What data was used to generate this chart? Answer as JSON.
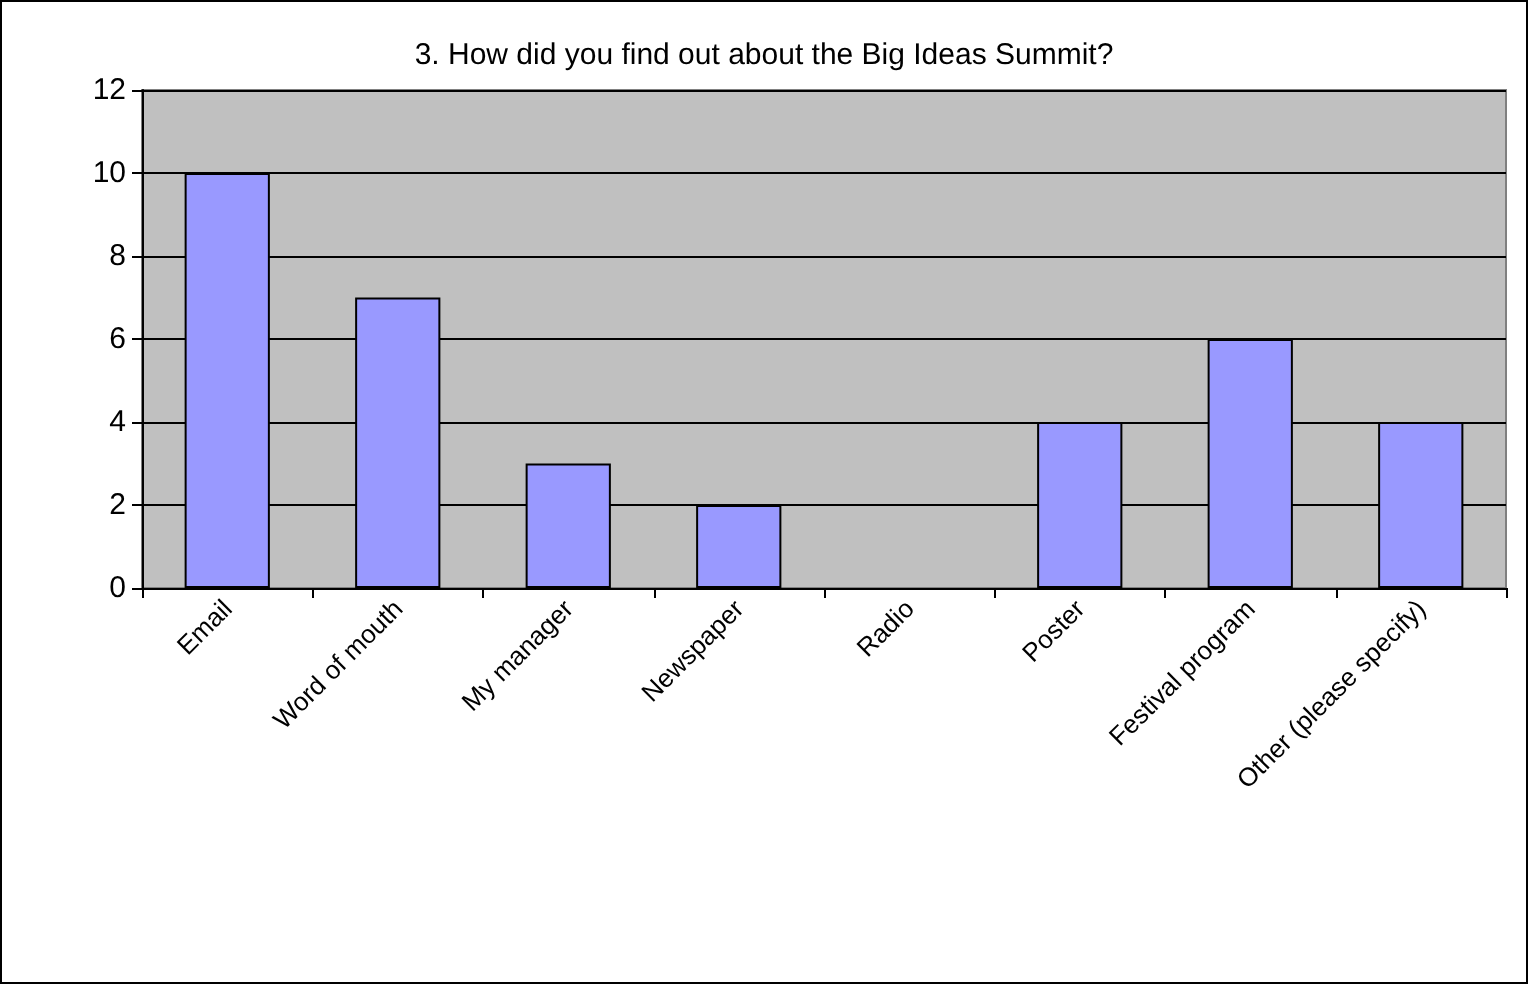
{
  "chart_data": {
    "type": "bar",
    "title": "3. How did you find out about the Big Ideas Summit?",
    "categories": [
      "Email",
      "Word of mouth",
      "My manager",
      "Newspaper",
      "Radio",
      "Poster",
      "Festival program",
      "Other (please specify)"
    ],
    "values": [
      10,
      7,
      3,
      2,
      0,
      4,
      6,
      4
    ],
    "color": "#9999ff",
    "ylim": [
      0,
      12
    ],
    "yticks": [
      0,
      2,
      4,
      6,
      8,
      10,
      12
    ],
    "grid": "y"
  }
}
